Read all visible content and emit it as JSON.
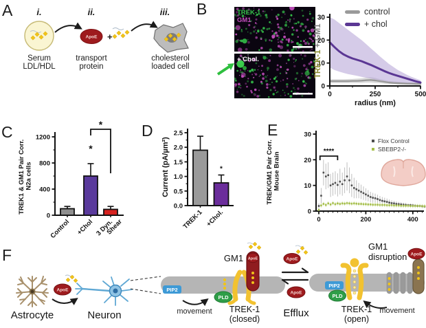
{
  "figure_colors": {
    "purple": "#5b3794",
    "bar_gray": "#8f8f8f",
    "bar_red": "#d6221f",
    "apoe_red": "#9e1b1e",
    "cholesterol_yellow": "#f0c419",
    "membrane_gray": "#b5b5b5",
    "pip2_blue": "#3e9ad6",
    "pld_green": "#2f9e48",
    "trek_yellow": "#f2c230",
    "neuron_blue": "#7ab4d8",
    "astrocyte_tan": "#a8906b",
    "brain_pink": "#f3cdc6"
  },
  "panels": {
    "a": {
      "letter": "A",
      "steps": [
        {
          "numeral": "i.",
          "caption_line1": "Serum",
          "caption_line2": "LDL/HDL"
        },
        {
          "numeral": "ii.",
          "caption_line1": "transport",
          "caption_line2": "protein",
          "badge": "ApoE",
          "plus": "+"
        },
        {
          "numeral": "iii.",
          "caption_line1": "cholesterol",
          "caption_line2": "loaded cell"
        }
      ]
    },
    "b": {
      "letter": "B",
      "image_top": {
        "marker1": "TREK-1",
        "marker1_color": "#35c24a",
        "marker2": "GM1",
        "marker2_color": "#c44fbe",
        "bg": "#0a0510"
      },
      "image_bottom": {
        "caption": "+ Chol.",
        "caption_color": "#ffffff",
        "arrow_color": "#2fbf3f"
      },
      "ylabel_part1": "TREK-1",
      "ylabel_part1_color": "#8a8c2e",
      "ylabel_part2": " + GM1",
      "ylabel_part2_color": "#7d7d7d"
    },
    "c": {
      "letter": "C"
    },
    "d": {
      "letter": "D"
    },
    "e": {
      "letter": "E"
    },
    "f": {
      "letter": "F",
      "labels": {
        "astrocyte": "Astrocyte",
        "neuron": "Neuron",
        "apoe": "ApoE",
        "gm1": "GM1",
        "pip2": "PIP2",
        "pld": "PLD",
        "movement": "movement",
        "trek1": "TREK-1",
        "closed": "(closed)",
        "open": "(open)",
        "efflux": "Efflux",
        "gm1_disruption_line1": "GM1",
        "gm1_disruption_line2": "disruption"
      }
    }
  },
  "chart_data": [
    {
      "id": "b_radius",
      "type": "line",
      "xlabel": "radius (nm)",
      "ylabel": "TREK-1 + GM1",
      "xlim": [
        0,
        500
      ],
      "ylim": [
        0,
        30
      ],
      "xticks": [
        0,
        250,
        500
      ],
      "yticks": [
        0,
        10,
        20,
        30
      ],
      "legend_position": "top-right",
      "x": [
        0,
        25,
        50,
        75,
        100,
        125,
        150,
        175,
        200,
        225,
        250,
        275,
        300,
        325,
        350,
        375,
        400,
        425,
        450,
        475,
        500
      ],
      "series": [
        {
          "name": "control",
          "color": "#9a9a9a",
          "band_color": "#c0c0c0",
          "values": [
            2.1,
            2.1,
            2.1,
            2.1,
            2.1,
            2.2,
            2.2,
            2.3,
            2.5,
            2.6,
            2.4,
            2.1,
            1.8,
            1.5,
            1.3,
            1.2,
            1.1,
            1.0,
            1.0,
            0.9,
            0.9
          ],
          "upper": [
            2.9,
            2.9,
            2.9,
            2.9,
            3.0,
            3.1,
            3.2,
            3.4,
            3.7,
            3.8,
            3.5,
            3.0,
            2.6,
            2.2,
            2.0,
            1.8,
            1.7,
            1.6,
            1.5,
            1.4,
            1.4
          ],
          "lower": [
            1.3,
            1.3,
            1.3,
            1.3,
            1.3,
            1.3,
            1.3,
            1.3,
            1.4,
            1.4,
            1.3,
            1.2,
            1.0,
            0.9,
            0.8,
            0.7,
            0.6,
            0.6,
            0.5,
            0.5,
            0.5
          ]
        },
        {
          "name": "+ chol",
          "color": "#5b3794",
          "band_color": "#b3a0d6",
          "values": [
            19,
            17,
            15.2,
            13.8,
            12.8,
            12,
            11.4,
            10.8,
            10,
            9.2,
            8.3,
            7.4,
            6.5,
            5.7,
            5,
            4.4,
            3.8,
            3.2,
            2.6,
            2,
            1.5
          ],
          "upper": [
            30,
            29,
            27.5,
            26,
            24.5,
            23,
            21.5,
            20,
            18.3,
            16.5,
            14.8,
            13,
            11.3,
            9.7,
            8.3,
            7,
            5.9,
            4.9,
            4,
            3.2,
            2.5
          ],
          "lower": [
            8,
            7,
            6.3,
            5.7,
            5.2,
            4.8,
            4.4,
            4,
            3.6,
            3.2,
            2.8,
            2.5,
            2.2,
            1.9,
            1.6,
            1.4,
            1.2,
            1,
            0.9,
            0.8,
            0.7
          ]
        }
      ]
    },
    {
      "id": "c_n2a",
      "type": "bar",
      "ylabel_lines": [
        "TREK1 & GM1 Pair Corr.",
        "N2a cells"
      ],
      "categories": [
        "Control",
        "+Chol",
        "3 Dyn. Shear"
      ],
      "category_label_lines": [
        [
          "Control"
        ],
        [
          "+Chol"
        ],
        [
          "3 Dyn.",
          "Shear"
        ]
      ],
      "values": [
        100,
        600,
        90
      ],
      "errors": [
        35,
        190,
        45
      ],
      "bar_colors": [
        "#8f8f8f",
        "#5a3a9c",
        "#d6221f"
      ],
      "ylim": [
        0,
        1200
      ],
      "yticks": [
        0,
        400,
        800,
        1200
      ],
      "significance": [
        {
          "type": "star",
          "bar": 1,
          "text": "*"
        },
        {
          "type": "bracket",
          "from_bar": 1,
          "to_bar": 2,
          "text": "*"
        }
      ]
    },
    {
      "id": "d_current",
      "type": "bar",
      "ylabel": "Current (pA/µm²)",
      "categories": [
        "TREK-1",
        "+Chol."
      ],
      "values": [
        1.9,
        0.78
      ],
      "errors": [
        0.48,
        0.27
      ],
      "bar_colors": [
        "#9a9a9a",
        "#6b2d9b"
      ],
      "ylim": [
        0,
        2.5
      ],
      "yticks": [
        0,
        0.5,
        1,
        1.5,
        2,
        2.5
      ],
      "ytick_labels": [
        "0.0",
        "0.5",
        "1.0",
        "1.5",
        "2.0",
        "2.5"
      ],
      "significance": [
        {
          "type": "star",
          "bar": 1,
          "text": "*"
        }
      ]
    },
    {
      "id": "e_brain",
      "type": "scatter",
      "ylabel_lines": [
        "TREK/GM1 Pair Corr.",
        "Mouse Brain"
      ],
      "xlim": [
        0,
        455
      ],
      "ylim": [
        0,
        30
      ],
      "xticks": [
        0,
        200,
        400
      ],
      "yticks": [
        0,
        10,
        20,
        30
      ],
      "x": [
        0,
        10,
        20,
        30,
        40,
        50,
        60,
        70,
        80,
        90,
        100,
        110,
        120,
        130,
        140,
        150,
        160,
        170,
        180,
        190,
        200,
        210,
        220,
        230,
        240,
        250,
        260,
        270,
        280,
        290,
        300,
        310,
        320,
        330,
        340,
        350,
        360,
        370,
        380,
        390,
        400,
        410,
        420,
        430,
        440,
        450
      ],
      "series": [
        {
          "name": "Flox Control",
          "color": "#4f4f4f",
          "err_color": "#b8b8b8",
          "values": [
            2,
            6,
            15,
            13.5,
            14,
            10,
            10.5,
            11,
            10.2,
            11.5,
            10.5,
            12,
            13.5,
            12,
            10,
            9,
            8.5,
            8,
            7.5,
            7,
            6.5,
            6,
            5.5,
            5.2,
            5,
            4.7,
            4.3,
            4,
            3.8,
            3.6,
            3.3,
            3.1,
            3,
            2.8,
            2.7,
            2.6,
            2.5,
            2.4,
            2.3,
            2.3,
            2.2,
            2.1,
            2,
            2,
            1.9,
            1.8
          ],
          "errors": [
            1,
            3,
            5,
            5,
            5,
            4.5,
            4.5,
            4.5,
            4.5,
            5,
            4.5,
            5,
            5.5,
            5,
            4.5,
            4,
            3.5,
            3,
            2.8,
            2.6,
            2.4,
            2.2,
            2,
            1.9,
            1.8,
            1.7,
            1.6,
            1.5,
            1.4,
            1.3,
            1.2,
            1.1,
            1,
            1,
            0.9,
            0.9,
            0.8,
            0.8,
            0.7,
            0.7,
            0.7,
            0.6,
            0.6,
            0.6,
            0.5,
            0.5
          ]
        },
        {
          "name": "SBEBP2-/-",
          "color": "#a6bf4b",
          "err_color": "#d4e2a8",
          "values": [
            0.5,
            2.2,
            2.8,
            2.4,
            3,
            2.6,
            3.1,
            2.7,
            3,
            2.8,
            3,
            2.9,
            3.1,
            3,
            2.9,
            3,
            2.9,
            2.8,
            2.8,
            2.7,
            2.7,
            2.6,
            2.6,
            2.5,
            2.5,
            2.5,
            2.4,
            2.4,
            2.4,
            2.3,
            2.3,
            2.3,
            2.2,
            2.2,
            2.2,
            2.1,
            2.1,
            2.1,
            2.1,
            2,
            2,
            2,
            2,
            2,
            1.9,
            1.9
          ],
          "errors": 0.8
        }
      ],
      "significance": [
        {
          "type": "bracket",
          "x1": 5,
          "x2": 80,
          "text": "****"
        }
      ]
    }
  ]
}
